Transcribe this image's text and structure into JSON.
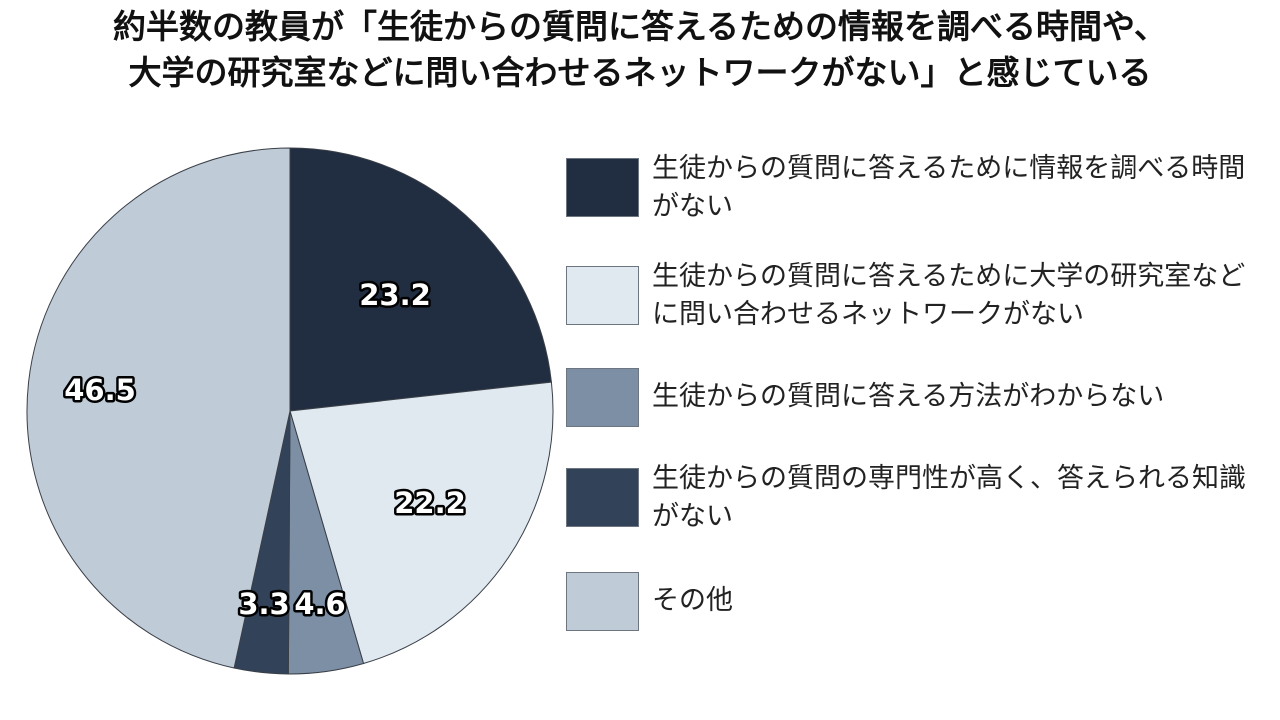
{
  "title": {
    "line1": "約半数の教員が「生徒からの質問に答えるための情報を調べる時間や、",
    "line2": "大学の研究室などに問い合わせるネットワークがない」と感じている"
  },
  "chart_data": {
    "type": "pie",
    "title": "約半数の教員が「生徒からの質問に答えるための情報を調べる時間や、大学の研究室などに問い合わせるネットワークがない」と感じている",
    "start_angle": "12 o'clock, clockwise",
    "slices": [
      {
        "label": "生徒からの質問に答えるために情報を調べる時間がない",
        "value": 23.2,
        "value_label": "23.2",
        "color": "#212d40"
      },
      {
        "label": "生徒からの質問に答えるために大学の研究室などに問い合わせるネットワークがない",
        "value": 22.2,
        "value_label": "22.2",
        "color": "#e0e8f0"
      },
      {
        "label": "生徒からの質問に答える方法がわからない",
        "value": 4.6,
        "value_label": "4.6",
        "color": "#7c8fa5"
      },
      {
        "label": "生徒からの質問の専門性が高く、答えられる知識がない",
        "value": 3.3,
        "value_label": "3.3",
        "color": "#324259"
      },
      {
        "label": "その他",
        "value": 46.5,
        "value_label": "46.5",
        "color": "#bfccd8"
      }
    ],
    "legend_position": "right"
  }
}
